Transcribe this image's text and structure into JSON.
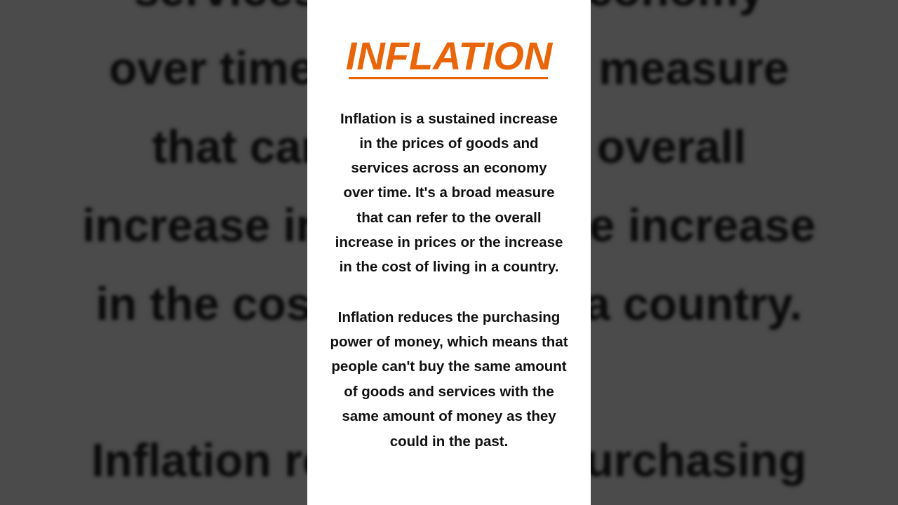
{
  "title": "INFLATION",
  "accent_color": "#e8650a",
  "paragraph1": [
    "Inflation is a sustained increase",
    "in the prices of goods and",
    "services across an economy",
    "over time. It's a broad measure",
    "that can refer to the overall",
    "increase in prices or the increase",
    "in the cost of living in a country."
  ],
  "paragraph2": [
    "Inflation reduces the purchasing",
    "power of money, which means that",
    "people can't buy the same amount",
    "of goods and services with the",
    "same amount of money as they",
    "could in the past."
  ]
}
